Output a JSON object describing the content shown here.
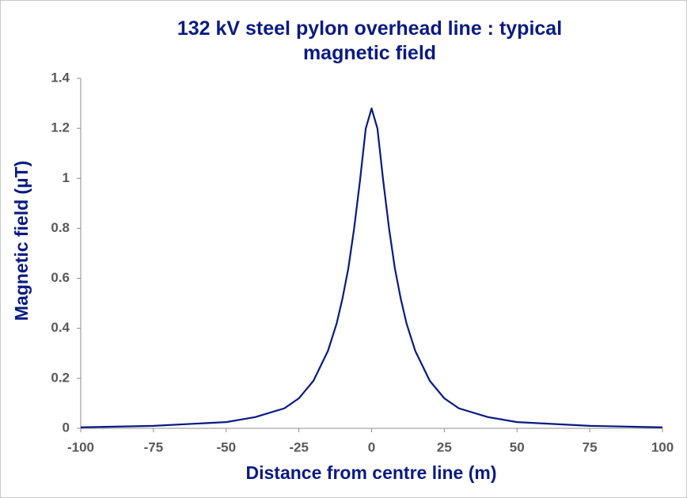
{
  "chart_data": {
    "type": "line",
    "title": "132 kV steel pylon overhead line : typical magnetic field",
    "x_label": "Distance from centre line (m)",
    "y_label": "Magnetic field (µT)",
    "x": [
      -100,
      -75,
      -50,
      -40,
      -30,
      -25,
      -20,
      -15,
      -12,
      -10,
      -8,
      -6,
      -4,
      -2,
      0,
      2,
      4,
      6,
      8,
      10,
      12,
      15,
      20,
      25,
      30,
      40,
      50,
      75,
      100
    ],
    "series": [
      {
        "name": "Magnetic field",
        "color": "#0a1a80",
        "values": [
          0.004,
          0.01,
          0.025,
          0.045,
          0.08,
          0.12,
          0.19,
          0.31,
          0.42,
          0.52,
          0.64,
          0.8,
          0.99,
          1.2,
          1.28,
          1.2,
          0.99,
          0.8,
          0.64,
          0.52,
          0.42,
          0.31,
          0.19,
          0.12,
          0.08,
          0.045,
          0.025,
          0.01,
          0.004
        ]
      }
    ],
    "xlim": [
      -100,
      100
    ],
    "xticks": [
      -100,
      -75,
      -50,
      -25,
      0,
      25,
      50,
      75,
      100
    ],
    "ylim": [
      0,
      1.4
    ],
    "yticks": [
      0,
      0.2,
      0.4,
      0.6,
      0.8,
      1,
      1.2,
      1.4
    ]
  }
}
